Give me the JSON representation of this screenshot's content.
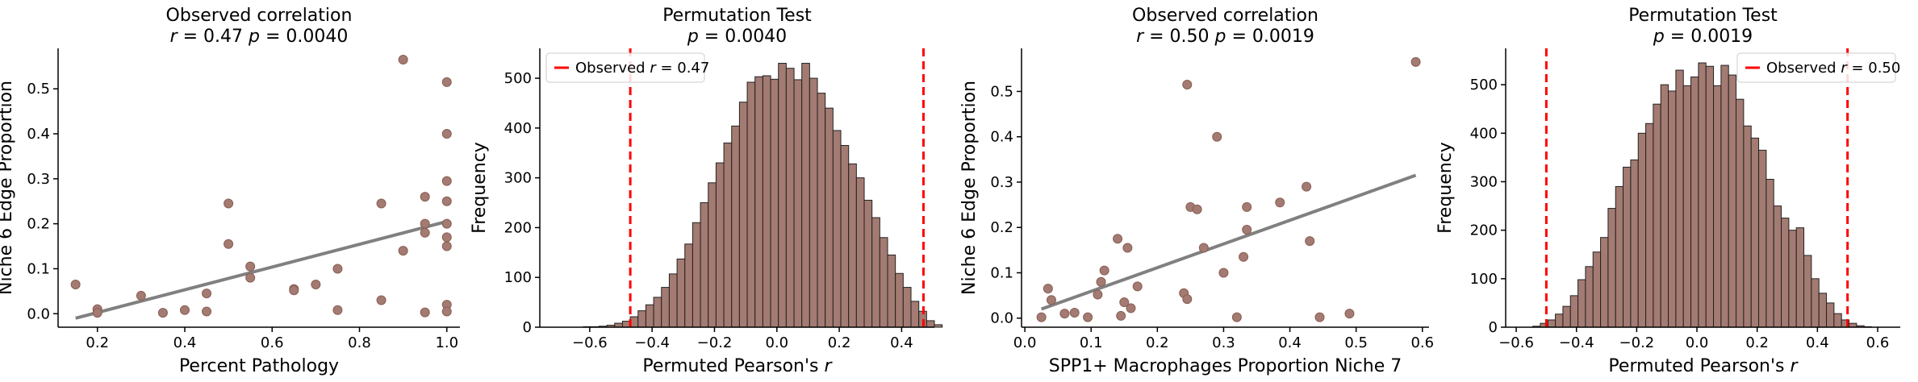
{
  "colors": {
    "point_fill": "#a37b72",
    "point_edge": "#8a5e55",
    "bar_fill": "#a37b72",
    "bar_edge": "#222222",
    "fit_line": "#808080",
    "observed_line": "#ff0000",
    "axis": "#000000"
  },
  "chart_data": [
    {
      "type": "scatter",
      "title_line1": "Observed correlation",
      "title_line2": "r = 0.47  p = 0.0040",
      "xlabel": "Percent Pathology",
      "ylabel": "Niche 6 Edge Proportion",
      "xlim": [
        0.11,
        1.03
      ],
      "ylim": [
        -0.03,
        0.59
      ],
      "xticks": [
        0.2,
        0.4,
        0.6,
        0.8,
        1.0
      ],
      "xtick_labels": [
        "0.2",
        "0.4",
        "0.6",
        "0.8",
        "1.0"
      ],
      "yticks": [
        0.0,
        0.1,
        0.2,
        0.3,
        0.4,
        0.5
      ],
      "ytick_labels": [
        "0.0",
        "0.1",
        "0.2",
        "0.3",
        "0.4",
        "0.5"
      ],
      "fit": {
        "x": [
          0.15,
          1.0
        ],
        "y": [
          -0.01,
          0.205
        ]
      },
      "points": {
        "x": [
          0.15,
          0.2,
          0.2,
          0.3,
          0.35,
          0.4,
          0.45,
          0.45,
          0.5,
          0.5,
          0.55,
          0.55,
          0.65,
          0.65,
          0.7,
          0.75,
          0.75,
          0.85,
          0.85,
          0.9,
          0.9,
          0.95,
          0.95,
          0.95,
          0.95,
          1.0,
          1.0,
          1.0,
          1.0,
          1.0,
          1.0,
          1.0,
          1.0,
          1.0
        ],
        "y": [
          0.065,
          0.01,
          0.002,
          0.04,
          0.002,
          0.008,
          0.045,
          0.005,
          0.245,
          0.155,
          0.105,
          0.08,
          0.055,
          0.052,
          0.065,
          0.1,
          0.008,
          0.245,
          0.03,
          0.565,
          0.14,
          0.26,
          0.2,
          0.18,
          0.003,
          0.515,
          0.4,
          0.295,
          0.25,
          0.2,
          0.17,
          0.15,
          0.02,
          0.005
        ]
      }
    },
    {
      "type": "bar",
      "title_line1": "Permutation Test",
      "title_line2": "p = 0.0040",
      "xlabel": "Permuted Pearson's r",
      "ylabel": "Frequency",
      "xlim": [
        -0.76,
        0.505
      ],
      "ylim": [
        0,
        560
      ],
      "xticks": [
        -0.6,
        -0.4,
        -0.2,
        0.0,
        0.2,
        0.4
      ],
      "xtick_labels": [
        "−0.6",
        "−0.4",
        "−0.2",
        "0.0",
        "0.2",
        "0.4"
      ],
      "yticks": [
        0,
        100,
        200,
        300,
        400,
        500
      ],
      "ytick_labels": [
        "0",
        "100",
        "200",
        "300",
        "400",
        "500"
      ],
      "observed": 0.47,
      "legend_label": "Observed r = 0.47",
      "legend_position": "top-left",
      "bins": {
        "x0": -0.62,
        "width": 0.025,
        "values": [
          1,
          1,
          2,
          4,
          8,
          12,
          21,
          33,
          45,
          60,
          80,
          107,
          137,
          167,
          210,
          250,
          290,
          330,
          370,
          404,
          452,
          492,
          503,
          505,
          498,
          530,
          520,
          497,
          530,
          500,
          470,
          440,
          395,
          365,
          328,
          300,
          255,
          220,
          180,
          145,
          108,
          80,
          52,
          32,
          13,
          5
        ]
      }
    },
    {
      "type": "scatter",
      "title_line1": "Observed correlation",
      "title_line2": "r = 0.50  p = 0.0019",
      "xlabel": "SPP1+ Macrophages Proportion Niche 7",
      "ylabel": "Niche 6 Edge Proportion",
      "xlim": [
        -0.005,
        0.61
      ],
      "ylim": [
        -0.02,
        0.595
      ],
      "xticks": [
        0.0,
        0.1,
        0.2,
        0.3,
        0.4,
        0.5,
        0.6
      ],
      "xtick_labels": [
        "0.0",
        "0.1",
        "0.2",
        "0.3",
        "0.4",
        "0.5",
        "0.6"
      ],
      "yticks": [
        0.0,
        0.1,
        0.2,
        0.3,
        0.4,
        0.5
      ],
      "ytick_labels": [
        "0.0",
        "0.1",
        "0.2",
        "0.3",
        "0.4",
        "0.5"
      ],
      "fit": {
        "x": [
          0.025,
          0.59
        ],
        "y": [
          0.02,
          0.315
        ]
      },
      "points": {
        "x": [
          0.025,
          0.035,
          0.04,
          0.06,
          0.075,
          0.095,
          0.11,
          0.115,
          0.12,
          0.14,
          0.145,
          0.15,
          0.155,
          0.16,
          0.17,
          0.24,
          0.245,
          0.245,
          0.25,
          0.26,
          0.27,
          0.29,
          0.3,
          0.32,
          0.33,
          0.335,
          0.335,
          0.385,
          0.425,
          0.43,
          0.445,
          0.49,
          0.59
        ],
        "y": [
          0.002,
          0.065,
          0.04,
          0.01,
          0.012,
          0.002,
          0.052,
          0.08,
          0.105,
          0.175,
          0.005,
          0.035,
          0.155,
          0.022,
          0.07,
          0.055,
          0.042,
          0.515,
          0.245,
          0.24,
          0.155,
          0.4,
          0.1,
          0.002,
          0.135,
          0.245,
          0.195,
          0.255,
          0.29,
          0.17,
          0.002,
          0.01,
          0.565
        ]
      }
    },
    {
      "type": "bar",
      "title_line1": "Permutation Test",
      "title_line2": "p = 0.0019",
      "xlabel": "Permuted Pearson's r",
      "ylabel": "Frequency",
      "xlim": [
        -0.635,
        0.675
      ],
      "ylim": [
        0,
        575
      ],
      "xticks": [
        -0.6,
        -0.4,
        -0.2,
        0.0,
        0.2,
        0.4,
        0.6
      ],
      "xtick_labels": [
        "−0.6",
        "−0.4",
        "−0.2",
        "0.0",
        "0.2",
        "0.4",
        "0.6"
      ],
      "yticks": [
        0,
        100,
        200,
        300,
        400,
        500
      ],
      "ytick_labels": [
        "0",
        "100",
        "200",
        "300",
        "400",
        "500"
      ],
      "observed": 0.5,
      "legend_label": "Observed r = 0.50",
      "legend_position": "top-right",
      "bins": {
        "x0": -0.545,
        "width": 0.025,
        "values": [
          2,
          8,
          15,
          27,
          43,
          65,
          98,
          125,
          155,
          185,
          245,
          290,
          330,
          345,
          400,
          420,
          460,
          500,
          487,
          530,
          498,
          516,
          545,
          538,
          498,
          540,
          520,
          470,
          415,
          390,
          365,
          305,
          250,
          225,
          200,
          205,
          148,
          100,
          70,
          50,
          28,
          15,
          8,
          3,
          1
        ]
      }
    }
  ]
}
